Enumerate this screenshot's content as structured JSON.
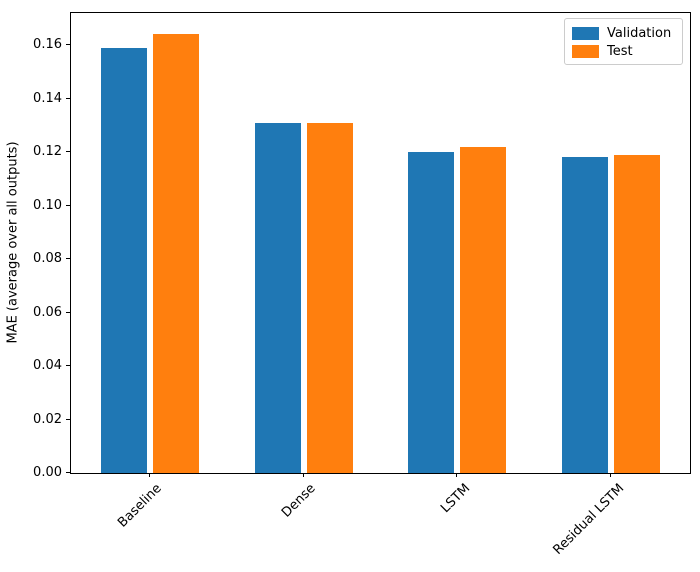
{
  "figure": {
    "background": "#ffffff",
    "text_color": "#000000",
    "spine_color": "#000000"
  },
  "chart_data": {
    "type": "bar",
    "title": "",
    "xlabel": "",
    "ylabel": "MAE (average over all outputs)",
    "categories": [
      "Baseline",
      "Dense",
      "LSTM",
      "Residual LSTM"
    ],
    "series": [
      {
        "name": "Validation",
        "color": "#1f77b4",
        "values": [
          0.159,
          0.131,
          0.12,
          0.118
        ]
      },
      {
        "name": "Test",
        "color": "#ff7f0e",
        "values": [
          0.164,
          0.131,
          0.122,
          0.119
        ]
      }
    ],
    "ylim": [
      0,
      0.172
    ],
    "yticks": [
      0.0,
      0.02,
      0.04,
      0.06,
      0.08,
      0.1,
      0.12,
      0.14,
      0.16
    ],
    "ytick_labels": [
      "0.00",
      "0.02",
      "0.04",
      "0.06",
      "0.08",
      "0.10",
      "0.12",
      "0.14",
      "0.16"
    ],
    "xtick_rotation_deg": 45,
    "grid": false,
    "legend": {
      "position": "upper right",
      "entries": [
        "Validation",
        "Test"
      ]
    }
  }
}
